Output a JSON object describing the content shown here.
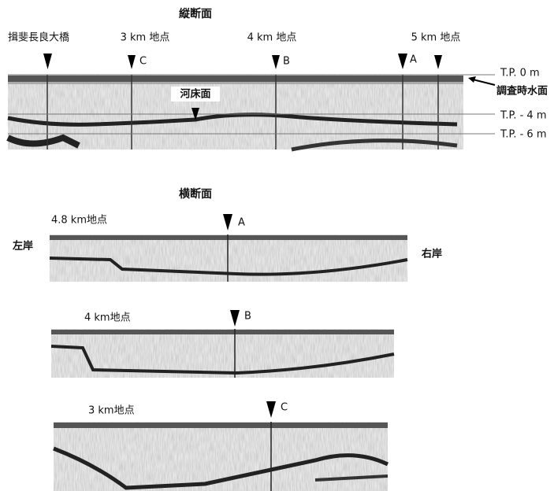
{
  "longitudinal": {
    "title": "縦断面",
    "locations": [
      "揖斐長良大橋",
      "3 km 地点",
      "4 km 地点",
      "5 km 地点"
    ],
    "markers": [
      "C",
      "B",
      "A"
    ],
    "levels": [
      "T.P. 0 m",
      "T.P. - 4 m",
      "T.P. - 6 m"
    ],
    "water_surface": "調査時水面",
    "riverbed": "河床面"
  },
  "cross": {
    "title": "横断面",
    "left_bank": "左岸",
    "right_bank": "右岸",
    "sections": [
      {
        "location": "4.8 km地点",
        "marker": "A"
      },
      {
        "location": "4 km地点",
        "marker": "B"
      },
      {
        "location": "3 km地点",
        "marker": "C"
      }
    ]
  }
}
